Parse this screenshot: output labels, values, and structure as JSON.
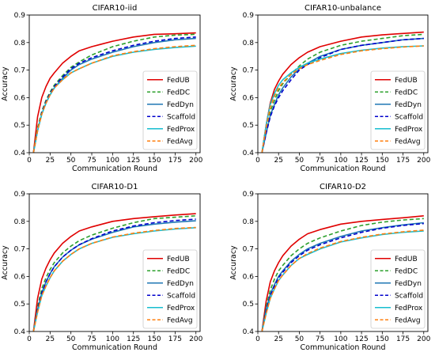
{
  "chart_data": [
    {
      "type": "line",
      "title": "CIFAR10-iid",
      "xlabel": "Communication Round",
      "ylabel": "Accuracy",
      "xlim": [
        0,
        205
      ],
      "ylim": [
        0.4,
        0.9
      ],
      "xticks": [
        "0",
        "25",
        "50",
        "75",
        "100",
        "125",
        "150",
        "175",
        "200"
      ],
      "yticks": [
        "0.4",
        "0.5",
        "0.6",
        "0.7",
        "0.8",
        "0.9"
      ],
      "grid": false,
      "legend_position": "lower-right",
      "x": [
        5,
        10,
        15,
        20,
        25,
        30,
        40,
        50,
        60,
        75,
        100,
        125,
        150,
        175,
        200
      ],
      "series": [
        {
          "name": "FedUB",
          "color": "#e00000",
          "dash": "solid",
          "values": [
            0.4,
            0.53,
            0.6,
            0.64,
            0.67,
            0.69,
            0.725,
            0.75,
            0.77,
            0.785,
            0.805,
            0.82,
            0.83,
            0.832,
            0.835
          ]
        },
        {
          "name": "FedDC",
          "color": "#2ca02c",
          "dash": "dashed",
          "values": [
            0.4,
            0.49,
            0.55,
            0.59,
            0.62,
            0.645,
            0.68,
            0.71,
            0.73,
            0.755,
            0.785,
            0.805,
            0.82,
            0.827,
            0.83
          ]
        },
        {
          "name": "FedDyn",
          "color": "#1f77b4",
          "dash": "solid",
          "values": [
            0.4,
            0.48,
            0.54,
            0.58,
            0.61,
            0.635,
            0.67,
            0.7,
            0.72,
            0.74,
            0.765,
            0.785,
            0.8,
            0.81,
            0.815
          ]
        },
        {
          "name": "Scaffold",
          "color": "#0000cc",
          "dash": "dashed",
          "values": [
            0.4,
            0.48,
            0.545,
            0.585,
            0.615,
            0.64,
            0.675,
            0.705,
            0.725,
            0.745,
            0.77,
            0.79,
            0.805,
            0.815,
            0.82
          ]
        },
        {
          "name": "FedProx",
          "color": "#17becf",
          "dash": "solid",
          "values": [
            0.4,
            0.48,
            0.54,
            0.58,
            0.61,
            0.635,
            0.665,
            0.69,
            0.705,
            0.725,
            0.75,
            0.765,
            0.775,
            0.782,
            0.787
          ]
        },
        {
          "name": "FedAvg",
          "color": "#ff7f0e",
          "dash": "dashed",
          "values": [
            0.4,
            0.48,
            0.54,
            0.58,
            0.61,
            0.635,
            0.665,
            0.69,
            0.705,
            0.725,
            0.752,
            0.767,
            0.778,
            0.785,
            0.79
          ]
        }
      ]
    },
    {
      "type": "line",
      "title": "CIFAR10-unbalance",
      "xlabel": "Communication Round",
      "ylabel": "Accuracy",
      "xlim": [
        0,
        205
      ],
      "ylim": [
        0.4,
        0.9
      ],
      "xticks": [
        "0",
        "25",
        "50",
        "75",
        "100",
        "125",
        "150",
        "175",
        "200"
      ],
      "yticks": [
        "0.4",
        "0.5",
        "0.6",
        "0.7",
        "0.8",
        "0.9"
      ],
      "grid": false,
      "legend_position": "lower-right",
      "x": [
        5,
        10,
        15,
        20,
        25,
        30,
        40,
        50,
        60,
        75,
        100,
        125,
        150,
        175,
        200
      ],
      "series": [
        {
          "name": "FedUB",
          "color": "#e00000",
          "dash": "solid",
          "values": [
            0.4,
            0.5,
            0.58,
            0.63,
            0.66,
            0.685,
            0.72,
            0.745,
            0.765,
            0.785,
            0.805,
            0.82,
            0.828,
            0.833,
            0.838
          ]
        },
        {
          "name": "FedDC",
          "color": "#2ca02c",
          "dash": "dashed",
          "values": [
            0.4,
            0.48,
            0.55,
            0.59,
            0.625,
            0.65,
            0.685,
            0.715,
            0.74,
            0.765,
            0.79,
            0.805,
            0.815,
            0.825,
            0.83
          ]
        },
        {
          "name": "FedDyn",
          "color": "#1f77b4",
          "dash": "solid",
          "values": [
            0.4,
            0.47,
            0.535,
            0.575,
            0.61,
            0.635,
            0.675,
            0.705,
            0.725,
            0.75,
            0.775,
            0.79,
            0.8,
            0.81,
            0.815
          ]
        },
        {
          "name": "Scaffold",
          "color": "#0000cc",
          "dash": "dashed",
          "values": [
            0.4,
            0.47,
            0.53,
            0.57,
            0.6,
            0.625,
            0.665,
            0.7,
            0.72,
            0.745,
            0.775,
            0.79,
            0.8,
            0.81,
            0.815
          ]
        },
        {
          "name": "FedProx",
          "color": "#17becf",
          "dash": "solid",
          "values": [
            0.4,
            0.5,
            0.575,
            0.615,
            0.645,
            0.665,
            0.69,
            0.71,
            0.725,
            0.74,
            0.76,
            0.772,
            0.78,
            0.785,
            0.788
          ]
        },
        {
          "name": "FedAvg",
          "color": "#ff7f0e",
          "dash": "dashed",
          "values": [
            0.4,
            0.49,
            0.565,
            0.605,
            0.635,
            0.655,
            0.685,
            0.705,
            0.72,
            0.735,
            0.757,
            0.77,
            0.778,
            0.784,
            0.788
          ]
        }
      ]
    },
    {
      "type": "line",
      "title": "CIFAR10-D1",
      "xlabel": "Communication Round",
      "ylabel": "Accuracy",
      "xlim": [
        0,
        205
      ],
      "ylim": [
        0.4,
        0.9
      ],
      "xticks": [
        "0",
        "25",
        "50",
        "75",
        "100",
        "125",
        "150",
        "175",
        "200"
      ],
      "yticks": [
        "0.4",
        "0.5",
        "0.6",
        "0.7",
        "0.8",
        "0.9"
      ],
      "grid": false,
      "legend_position": "lower-right",
      "x": [
        5,
        10,
        15,
        20,
        25,
        30,
        40,
        50,
        60,
        75,
        100,
        125,
        150,
        175,
        200
      ],
      "series": [
        {
          "name": "FedUB",
          "color": "#e00000",
          "dash": "solid",
          "values": [
            0.4,
            0.52,
            0.59,
            0.63,
            0.66,
            0.685,
            0.72,
            0.745,
            0.765,
            0.78,
            0.8,
            0.81,
            0.817,
            0.823,
            0.828
          ]
        },
        {
          "name": "FedDC",
          "color": "#2ca02c",
          "dash": "dashed",
          "values": [
            0.4,
            0.49,
            0.555,
            0.595,
            0.625,
            0.65,
            0.685,
            0.71,
            0.73,
            0.75,
            0.775,
            0.795,
            0.81,
            0.815,
            0.82
          ]
        },
        {
          "name": "FedDyn",
          "color": "#1f77b4",
          "dash": "solid",
          "values": [
            0.4,
            0.48,
            0.54,
            0.58,
            0.61,
            0.635,
            0.67,
            0.695,
            0.715,
            0.735,
            0.76,
            0.78,
            0.79,
            0.797,
            0.802
          ]
        },
        {
          "name": "Scaffold",
          "color": "#0000cc",
          "dash": "dashed",
          "values": [
            0.4,
            0.48,
            0.54,
            0.58,
            0.61,
            0.635,
            0.67,
            0.695,
            0.715,
            0.737,
            0.765,
            0.783,
            0.795,
            0.803,
            0.808
          ]
        },
        {
          "name": "FedProx",
          "color": "#17becf",
          "dash": "solid",
          "values": [
            0.4,
            0.47,
            0.53,
            0.565,
            0.595,
            0.62,
            0.655,
            0.68,
            0.7,
            0.72,
            0.742,
            0.755,
            0.765,
            0.772,
            0.777
          ]
        },
        {
          "name": "FedAvg",
          "color": "#ff7f0e",
          "dash": "dashed",
          "values": [
            0.4,
            0.47,
            0.53,
            0.565,
            0.595,
            0.62,
            0.655,
            0.68,
            0.7,
            0.72,
            0.743,
            0.757,
            0.767,
            0.774,
            0.778
          ]
        }
      ]
    },
    {
      "type": "line",
      "title": "CIFAR10-D2",
      "xlabel": "Communication Round",
      "ylabel": "Accuracy",
      "xlim": [
        0,
        205
      ],
      "ylim": [
        0.4,
        0.9
      ],
      "xticks": [
        "0",
        "25",
        "50",
        "75",
        "100",
        "125",
        "150",
        "175",
        "200"
      ],
      "yticks": [
        "0.4",
        "0.5",
        "0.6",
        "0.7",
        "0.8",
        "0.9"
      ],
      "grid": false,
      "legend_position": "lower-right",
      "x": [
        5,
        10,
        15,
        20,
        25,
        30,
        40,
        50,
        60,
        75,
        100,
        125,
        150,
        175,
        200
      ],
      "series": [
        {
          "name": "FedUB",
          "color": "#e00000",
          "dash": "solid",
          "values": [
            0.4,
            0.51,
            0.58,
            0.62,
            0.65,
            0.675,
            0.71,
            0.735,
            0.755,
            0.77,
            0.79,
            0.8,
            0.807,
            0.813,
            0.82
          ]
        },
        {
          "name": "FedDC",
          "color": "#2ca02c",
          "dash": "dashed",
          "values": [
            0.4,
            0.49,
            0.55,
            0.59,
            0.62,
            0.64,
            0.675,
            0.7,
            0.72,
            0.74,
            0.765,
            0.785,
            0.797,
            0.805,
            0.81
          ]
        },
        {
          "name": "FedDyn",
          "color": "#1f77b4",
          "dash": "solid",
          "values": [
            0.4,
            0.48,
            0.535,
            0.57,
            0.6,
            0.62,
            0.655,
            0.68,
            0.7,
            0.72,
            0.745,
            0.765,
            0.777,
            0.787,
            0.795
          ]
        },
        {
          "name": "Scaffold",
          "color": "#0000cc",
          "dash": "dashed",
          "values": [
            0.4,
            0.475,
            0.53,
            0.565,
            0.595,
            0.615,
            0.65,
            0.675,
            0.695,
            0.715,
            0.74,
            0.76,
            0.775,
            0.785,
            0.792
          ]
        },
        {
          "name": "FedProx",
          "color": "#17becf",
          "dash": "solid",
          "values": [
            0.4,
            0.465,
            0.52,
            0.555,
            0.585,
            0.605,
            0.64,
            0.665,
            0.68,
            0.7,
            0.725,
            0.74,
            0.752,
            0.76,
            0.765
          ]
        },
        {
          "name": "FedAvg",
          "color": "#ff7f0e",
          "dash": "dashed",
          "values": [
            0.4,
            0.465,
            0.52,
            0.555,
            0.585,
            0.605,
            0.64,
            0.665,
            0.683,
            0.703,
            0.727,
            0.742,
            0.754,
            0.762,
            0.768
          ]
        }
      ]
    }
  ]
}
